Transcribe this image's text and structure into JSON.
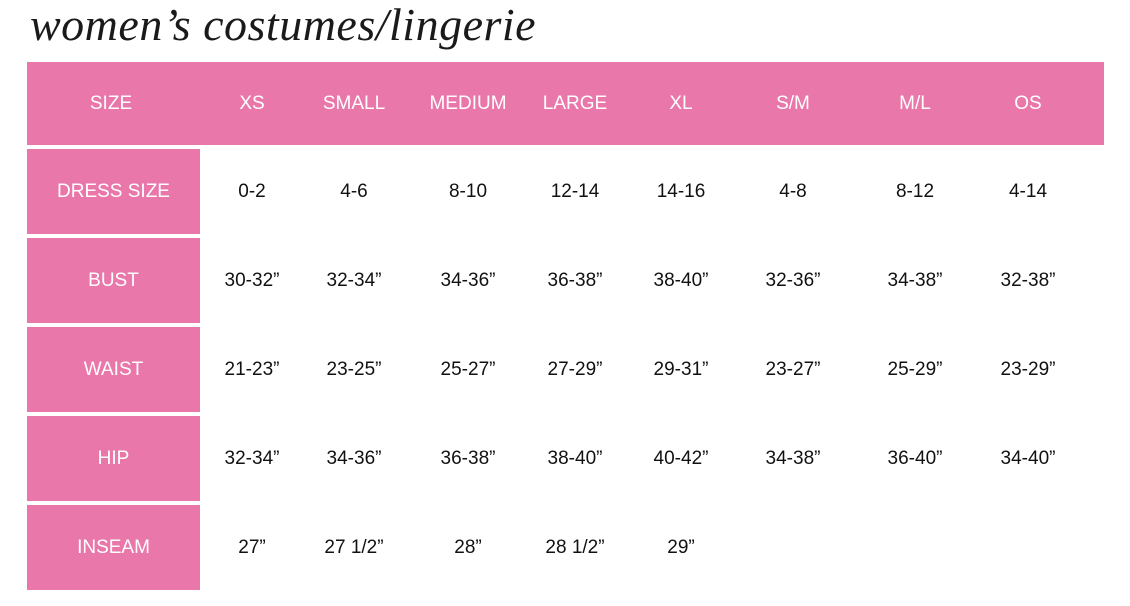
{
  "title": "women’s costumes/lingerie",
  "colors": {
    "accent": "#e977aa",
    "text": "#111111",
    "header_text": "#ffffff"
  },
  "header": [
    "SIZE",
    "XS",
    "SMALL",
    "MEDIUM",
    "LARGE",
    "XL",
    "S/M",
    "M/L",
    "OS"
  ],
  "rows": [
    {
      "label": "DRESS SIZE",
      "values": [
        "0-2",
        "4-6",
        "8-10",
        "12-14",
        "14-16",
        "4-8",
        "8-12",
        "4-14"
      ]
    },
    {
      "label": "BUST",
      "values": [
        "30-32”",
        "32-34”",
        "34-36”",
        "36-38”",
        "38-40”",
        "32-36”",
        "34-38”",
        "32-38”"
      ]
    },
    {
      "label": "WAIST",
      "values": [
        "21-23”",
        "23-25”",
        "25-27”",
        "27-29”",
        "29-31”",
        "23-27”",
        "25-29”",
        "23-29”"
      ]
    },
    {
      "label": "HIP",
      "values": [
        "32-34”",
        "34-36”",
        "36-38”",
        "38-40”",
        "40-42”",
        "34-38”",
        "36-40”",
        "34-40”"
      ]
    },
    {
      "label": "INSEAM",
      "values": [
        "27”",
        "27 1/2”",
        "28”",
        "28 1/2”",
        "29”",
        "",
        "",
        ""
      ]
    }
  ]
}
